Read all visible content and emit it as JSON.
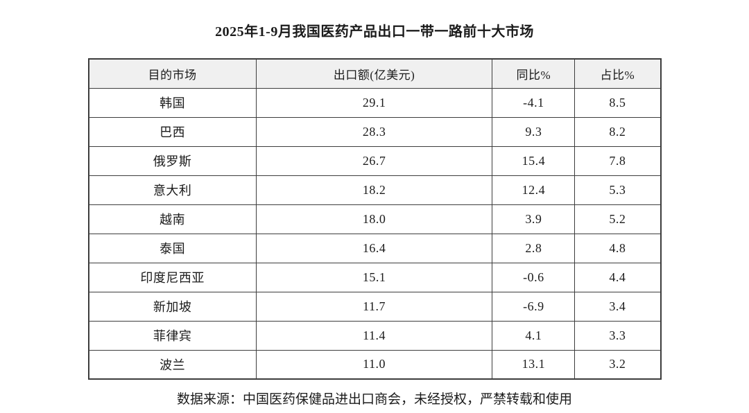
{
  "chart_data": {
    "type": "table",
    "title": "2025年1-9月我国医药产品出口一带一路前十大市场",
    "columns": [
      "目的市场",
      "出口额(亿美元)",
      "同比%",
      "占比%"
    ],
    "rows": [
      [
        "韩国",
        "29.1",
        "-4.1",
        "8.5"
      ],
      [
        "巴西",
        "28.3",
        "9.3",
        "8.2"
      ],
      [
        "俄罗斯",
        "26.7",
        "15.4",
        "7.8"
      ],
      [
        "意大利",
        "18.2",
        "12.4",
        "5.3"
      ],
      [
        "越南",
        "18.0",
        "3.9",
        "5.2"
      ],
      [
        "泰国",
        "16.4",
        "2.8",
        "4.8"
      ],
      [
        "印度尼西亚",
        "15.1",
        "-0.6",
        "4.4"
      ],
      [
        "新加坡",
        "11.7",
        "-6.9",
        "3.4"
      ],
      [
        "菲律宾",
        "11.4",
        "4.1",
        "3.3"
      ],
      [
        "波兰",
        "11.0",
        "13.1",
        "3.2"
      ]
    ],
    "source_note": "数据来源：中国医药保健品进出口商会，未经授权，严禁转载和使用",
    "layout": {
      "grid": "on",
      "header_row": true
    }
  },
  "colors": {
    "header_bg": "#f0f0f0",
    "border": "#3c3c3c",
    "text": "#1b1b1b",
    "background": "#ffffff"
  }
}
